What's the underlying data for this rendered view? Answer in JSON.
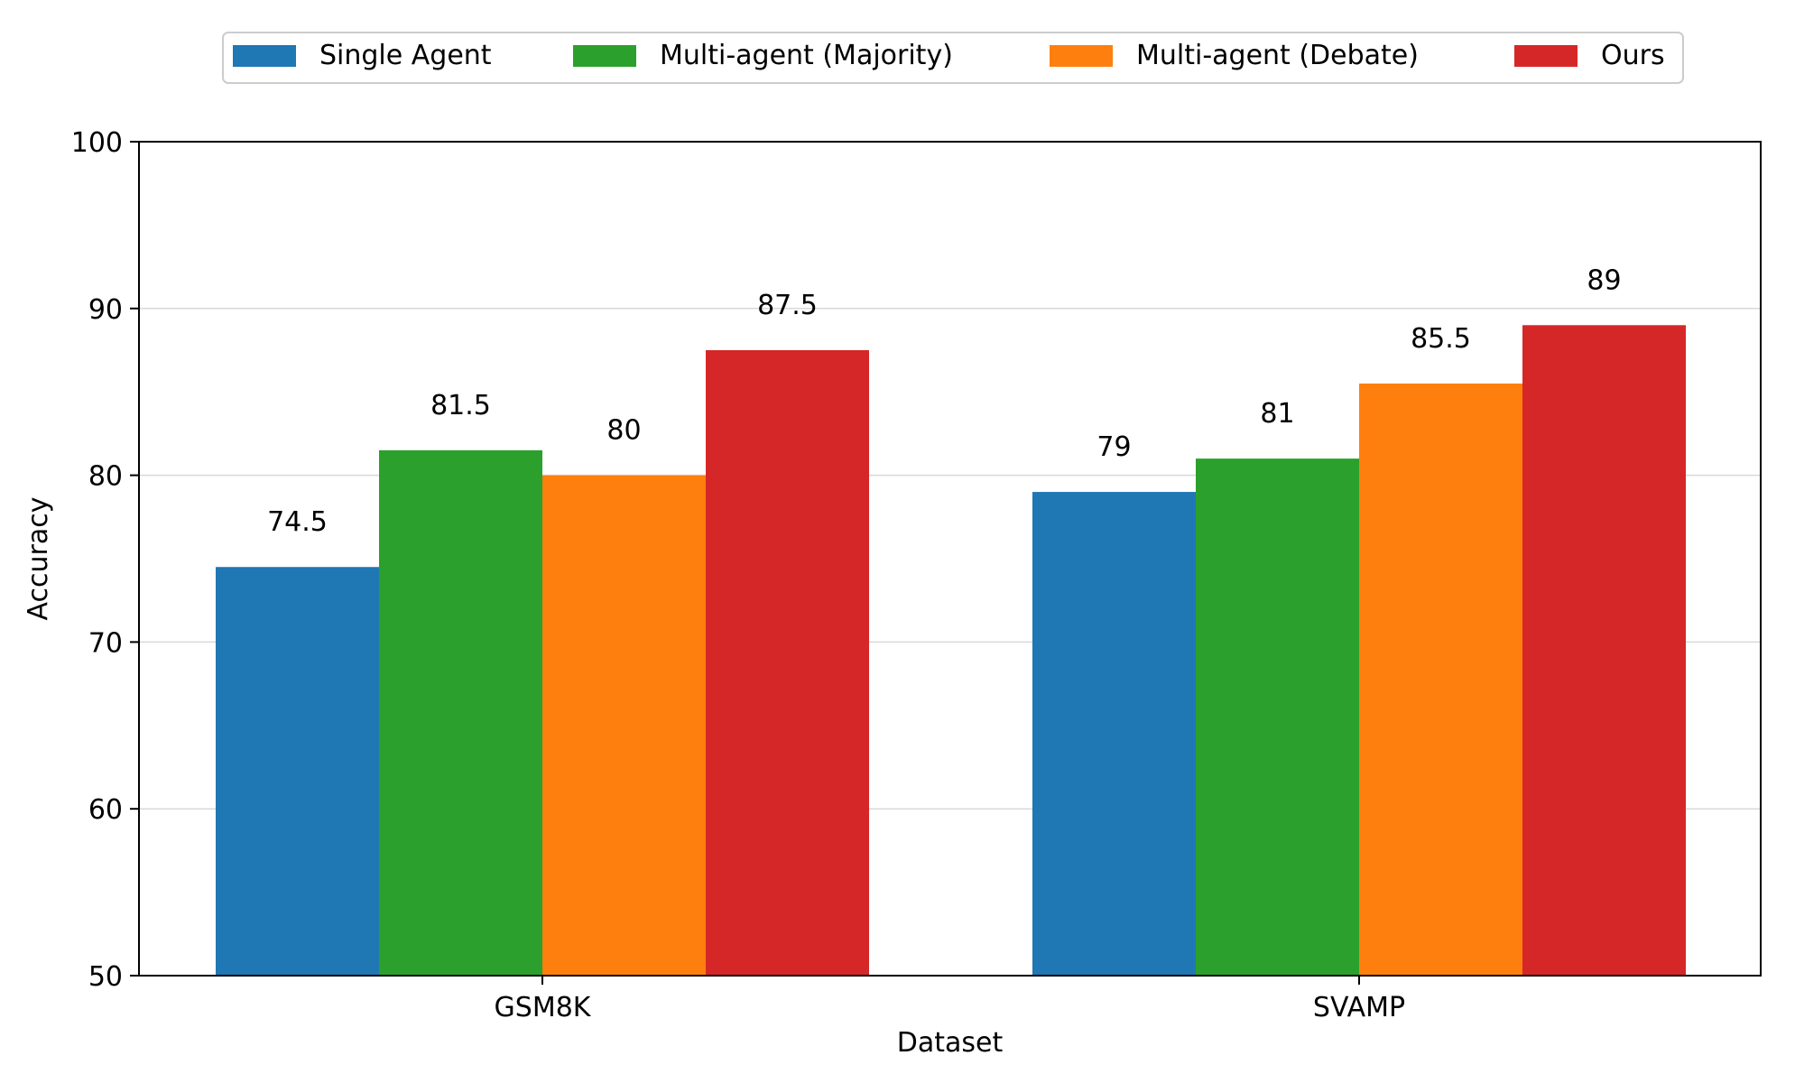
{
  "chart_data": {
    "type": "bar",
    "title": "",
    "xlabel": "Dataset",
    "ylabel": "Accuracy",
    "categories": [
      "GSM8K",
      "SVAMP"
    ],
    "ylim": [
      50,
      100
    ],
    "yticks": [
      50,
      60,
      70,
      80,
      90,
      100
    ],
    "grid": "horizontal",
    "legend_position": "top-center",
    "series": [
      {
        "name": "Single Agent",
        "color": "#1f77b4",
        "values": [
          74.5,
          79
        ]
      },
      {
        "name": "Multi-agent (Majority)",
        "color": "#2ca02c",
        "values": [
          81.5,
          81
        ]
      },
      {
        "name": "Multi-agent (Debate)",
        "color": "#ff7f0e",
        "values": [
          80,
          85.5
        ]
      },
      {
        "name": "Ours",
        "color": "#d62728",
        "values": [
          87.5,
          89
        ]
      }
    ]
  }
}
